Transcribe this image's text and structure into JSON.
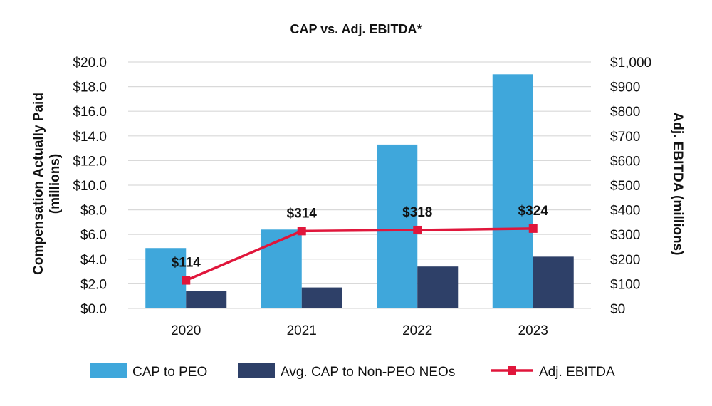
{
  "chart_data": {
    "type": "bar",
    "title": "CAP vs. Adj. EBITDA*",
    "categories": [
      "2020",
      "2021",
      "2022",
      "2023"
    ],
    "ylabel_left": [
      "Compensation Actually Paid",
      "(millions)"
    ],
    "ylabel_right": "Adj. EBITDA (millions)",
    "y_left_range": [
      0,
      20
    ],
    "y_left_step": 2,
    "y_left_ticks": [
      "$0.0",
      "$2.0",
      "$4.0",
      "$6.0",
      "$8.0",
      "$10.0",
      "$12.0",
      "$14.0",
      "$16.0",
      "$18.0",
      "$20.0"
    ],
    "y_right_range": [
      0,
      1000
    ],
    "y_right_step": 100,
    "y_right_ticks": [
      "$0",
      "$100",
      "$200",
      "$300",
      "$400",
      "$500",
      "$600",
      "$700",
      "$800",
      "$900",
      "$1,000"
    ],
    "grid": true,
    "series": [
      {
        "name": "CAP to PEO",
        "type": "bar",
        "axis": "left",
        "color": "#3FA7DB",
        "values": [
          4.9,
          6.4,
          13.3,
          19.0
        ]
      },
      {
        "name": "Avg. CAP to Non-PEO NEOs",
        "type": "bar",
        "axis": "left",
        "color": "#2E4068",
        "values": [
          1.4,
          1.7,
          3.4,
          4.2
        ]
      },
      {
        "name": "Adj. EBITDA",
        "type": "line",
        "axis": "right",
        "color": "#E0163B",
        "values": [
          114,
          314,
          318,
          324
        ],
        "labels": [
          "$114",
          "$314",
          "$318",
          "$324"
        ]
      }
    ],
    "legend_position": "bottom"
  }
}
